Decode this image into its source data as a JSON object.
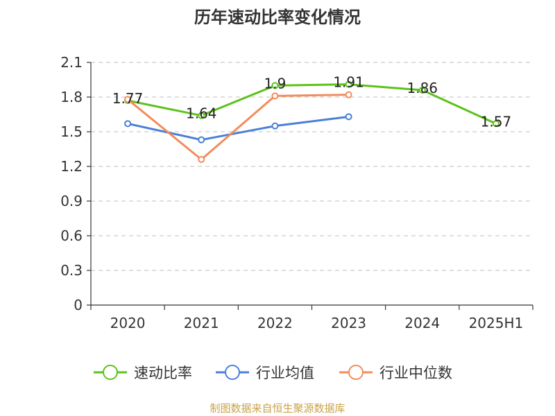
{
  "chart_data": {
    "type": "line",
    "title": "历年速动比率变化情况",
    "categories": [
      "2020",
      "2021",
      "2022",
      "2023",
      "2024",
      "2025H1"
    ],
    "yticks": [
      "0",
      "0.3",
      "0.6",
      "0.9",
      "1.2",
      "1.5",
      "1.8",
      "2.1"
    ],
    "ylim": [
      0,
      2.1
    ],
    "grid": true,
    "legend_position": "bottom",
    "series": [
      {
        "name": "速动比率",
        "color": "#5cc21b",
        "values": [
          1.77,
          1.64,
          1.9,
          1.91,
          1.86,
          1.57
        ],
        "labels": [
          "1.77",
          "1.64",
          "1.9",
          "1.91",
          "1.86",
          "1.57"
        ]
      },
      {
        "name": "行业均值",
        "color": "#4a7fd8",
        "values": [
          1.57,
          1.43,
          1.55,
          1.63,
          null,
          null
        ]
      },
      {
        "name": "行业中位数",
        "color": "#f28c5a",
        "values": [
          1.78,
          1.26,
          1.81,
          1.82,
          null,
          null
        ]
      }
    ]
  },
  "source": "制图数据来自恒生聚源数据库"
}
